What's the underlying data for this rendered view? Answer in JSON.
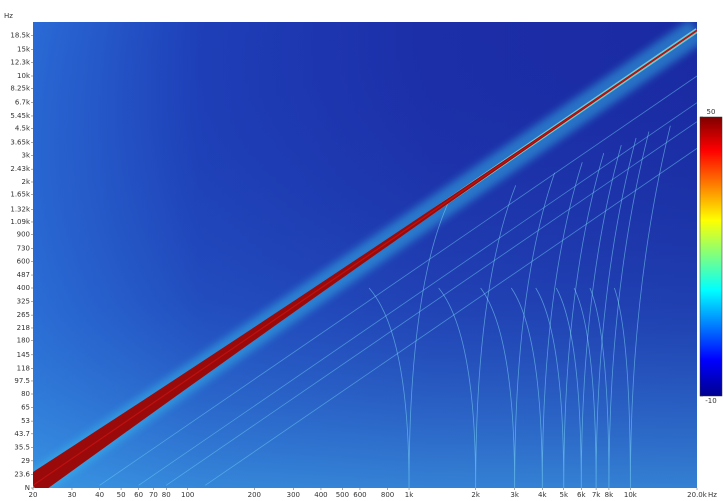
{
  "chart_data": {
    "type": "spectrogram",
    "x_unit": "Hz",
    "y_unit": "Hz",
    "log_x": true,
    "log_y": true,
    "xlim": [
      20,
      20000
    ],
    "xticks": [
      20,
      30,
      40,
      50,
      60,
      70,
      80,
      100,
      200,
      300,
      400,
      500,
      600,
      800,
      {
        "value": 1000,
        "label": "1k"
      },
      {
        "value": 2000,
        "label": "2k"
      },
      {
        "value": 3000,
        "label": "3k"
      },
      {
        "value": 4000,
        "label": "4k"
      },
      {
        "value": 5000,
        "label": "5k"
      },
      {
        "value": 6000,
        "label": "6k"
      },
      {
        "value": 7000,
        "label": "7k"
      },
      {
        "value": 8000,
        "label": "8k"
      },
      {
        "value": 10000,
        "label": "10k"
      },
      {
        "value": 20000,
        "label": "20.0k"
      }
    ],
    "ylim": [
      19.2,
      22700
    ],
    "yticks": [
      {
        "value": 18500,
        "label": "18.5k"
      },
      {
        "value": 15000,
        "label": "15k"
      },
      {
        "value": 12300,
        "label": "12.3k"
      },
      {
        "value": 10000,
        "label": "10k"
      },
      {
        "value": 8250,
        "label": "8.25k"
      },
      {
        "value": 6700,
        "label": "6.7k"
      },
      {
        "value": 5450,
        "label": "5.45k"
      },
      {
        "value": 4500,
        "label": "4.5k"
      },
      {
        "value": 3650,
        "label": "3.65k"
      },
      {
        "value": 3000,
        "label": "3k"
      },
      {
        "value": 2430,
        "label": "2.43k"
      },
      {
        "value": 2000,
        "label": "2k"
      },
      {
        "value": 1650,
        "label": "1.65k"
      },
      {
        "value": 1320,
        "label": "1.32k"
      },
      {
        "value": 1090,
        "label": "1.09k"
      },
      900,
      730,
      600,
      487,
      400,
      325,
      265,
      218,
      180,
      145,
      118,
      97.5,
      80,
      65,
      53,
      43.7,
      35.5,
      29,
      23.6,
      {
        "value": 19.2,
        "label": "N"
      }
    ],
    "colorbar": {
      "lim": [
        -10,
        50
      ],
      "ticks": [
        50,
        -10
      ]
    }
  }
}
